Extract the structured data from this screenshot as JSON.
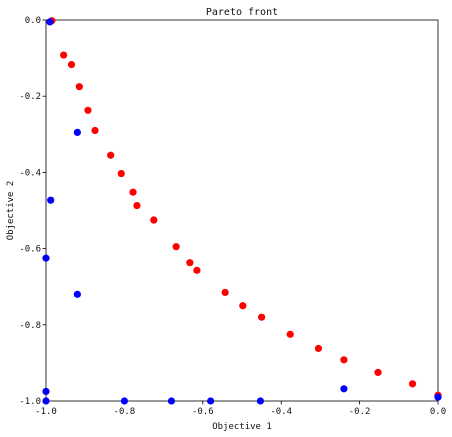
{
  "chart_data": {
    "type": "scatter",
    "title": "Pareto front",
    "xlabel": "Objective 1",
    "ylabel": "Objective 2",
    "xlim": [
      -1.0,
      0.0
    ],
    "ylim": [
      -1.0,
      0.0
    ],
    "xticks": [
      "-1.0",
      "-0.8",
      "-0.6",
      "-0.4",
      "-0.2",
      "0.0"
    ],
    "yticks": [
      "0.0",
      "-0.2",
      "-0.4",
      "-0.6",
      "-0.8",
      "-1.0"
    ],
    "grid": false,
    "legend": "none",
    "series": [
      {
        "color": "#ff0000",
        "points": [
          [
            -0.985,
            -0.002
          ],
          [
            -0.955,
            -0.092
          ],
          [
            -0.935,
            -0.117
          ],
          [
            -0.915,
            -0.175
          ],
          [
            -0.893,
            -0.237
          ],
          [
            -0.875,
            -0.29
          ],
          [
            -0.835,
            -0.355
          ],
          [
            -0.808,
            -0.403
          ],
          [
            -0.778,
            -0.452
          ],
          [
            -0.768,
            -0.487
          ],
          [
            -0.725,
            -0.525
          ],
          [
            -0.668,
            -0.595
          ],
          [
            -0.633,
            -0.637
          ],
          [
            -0.615,
            -0.657
          ],
          [
            -0.543,
            -0.715
          ],
          [
            -0.498,
            -0.75
          ],
          [
            -0.45,
            -0.78
          ],
          [
            -0.377,
            -0.825
          ],
          [
            -0.305,
            -0.862
          ],
          [
            -0.24,
            -0.892
          ],
          [
            -0.153,
            -0.925
          ],
          [
            -0.065,
            -0.955
          ],
          [
            0.0,
            -0.985
          ]
        ]
      },
      {
        "color": "#0000ff",
        "points": [
          [
            -0.99,
            -0.005
          ],
          [
            -0.988,
            -0.473
          ],
          [
            -1.0,
            -0.625
          ],
          [
            -0.92,
            -0.295
          ],
          [
            -0.92,
            -0.72
          ],
          [
            -1.0,
            -0.975
          ],
          [
            -1.0,
            -1.0
          ],
          [
            -0.8,
            -1.0
          ],
          [
            -0.68,
            -1.0
          ],
          [
            -0.58,
            -1.0
          ],
          [
            -0.453,
            -1.0
          ],
          [
            -0.24,
            -0.968
          ],
          [
            0.0,
            -0.99
          ]
        ]
      }
    ]
  }
}
